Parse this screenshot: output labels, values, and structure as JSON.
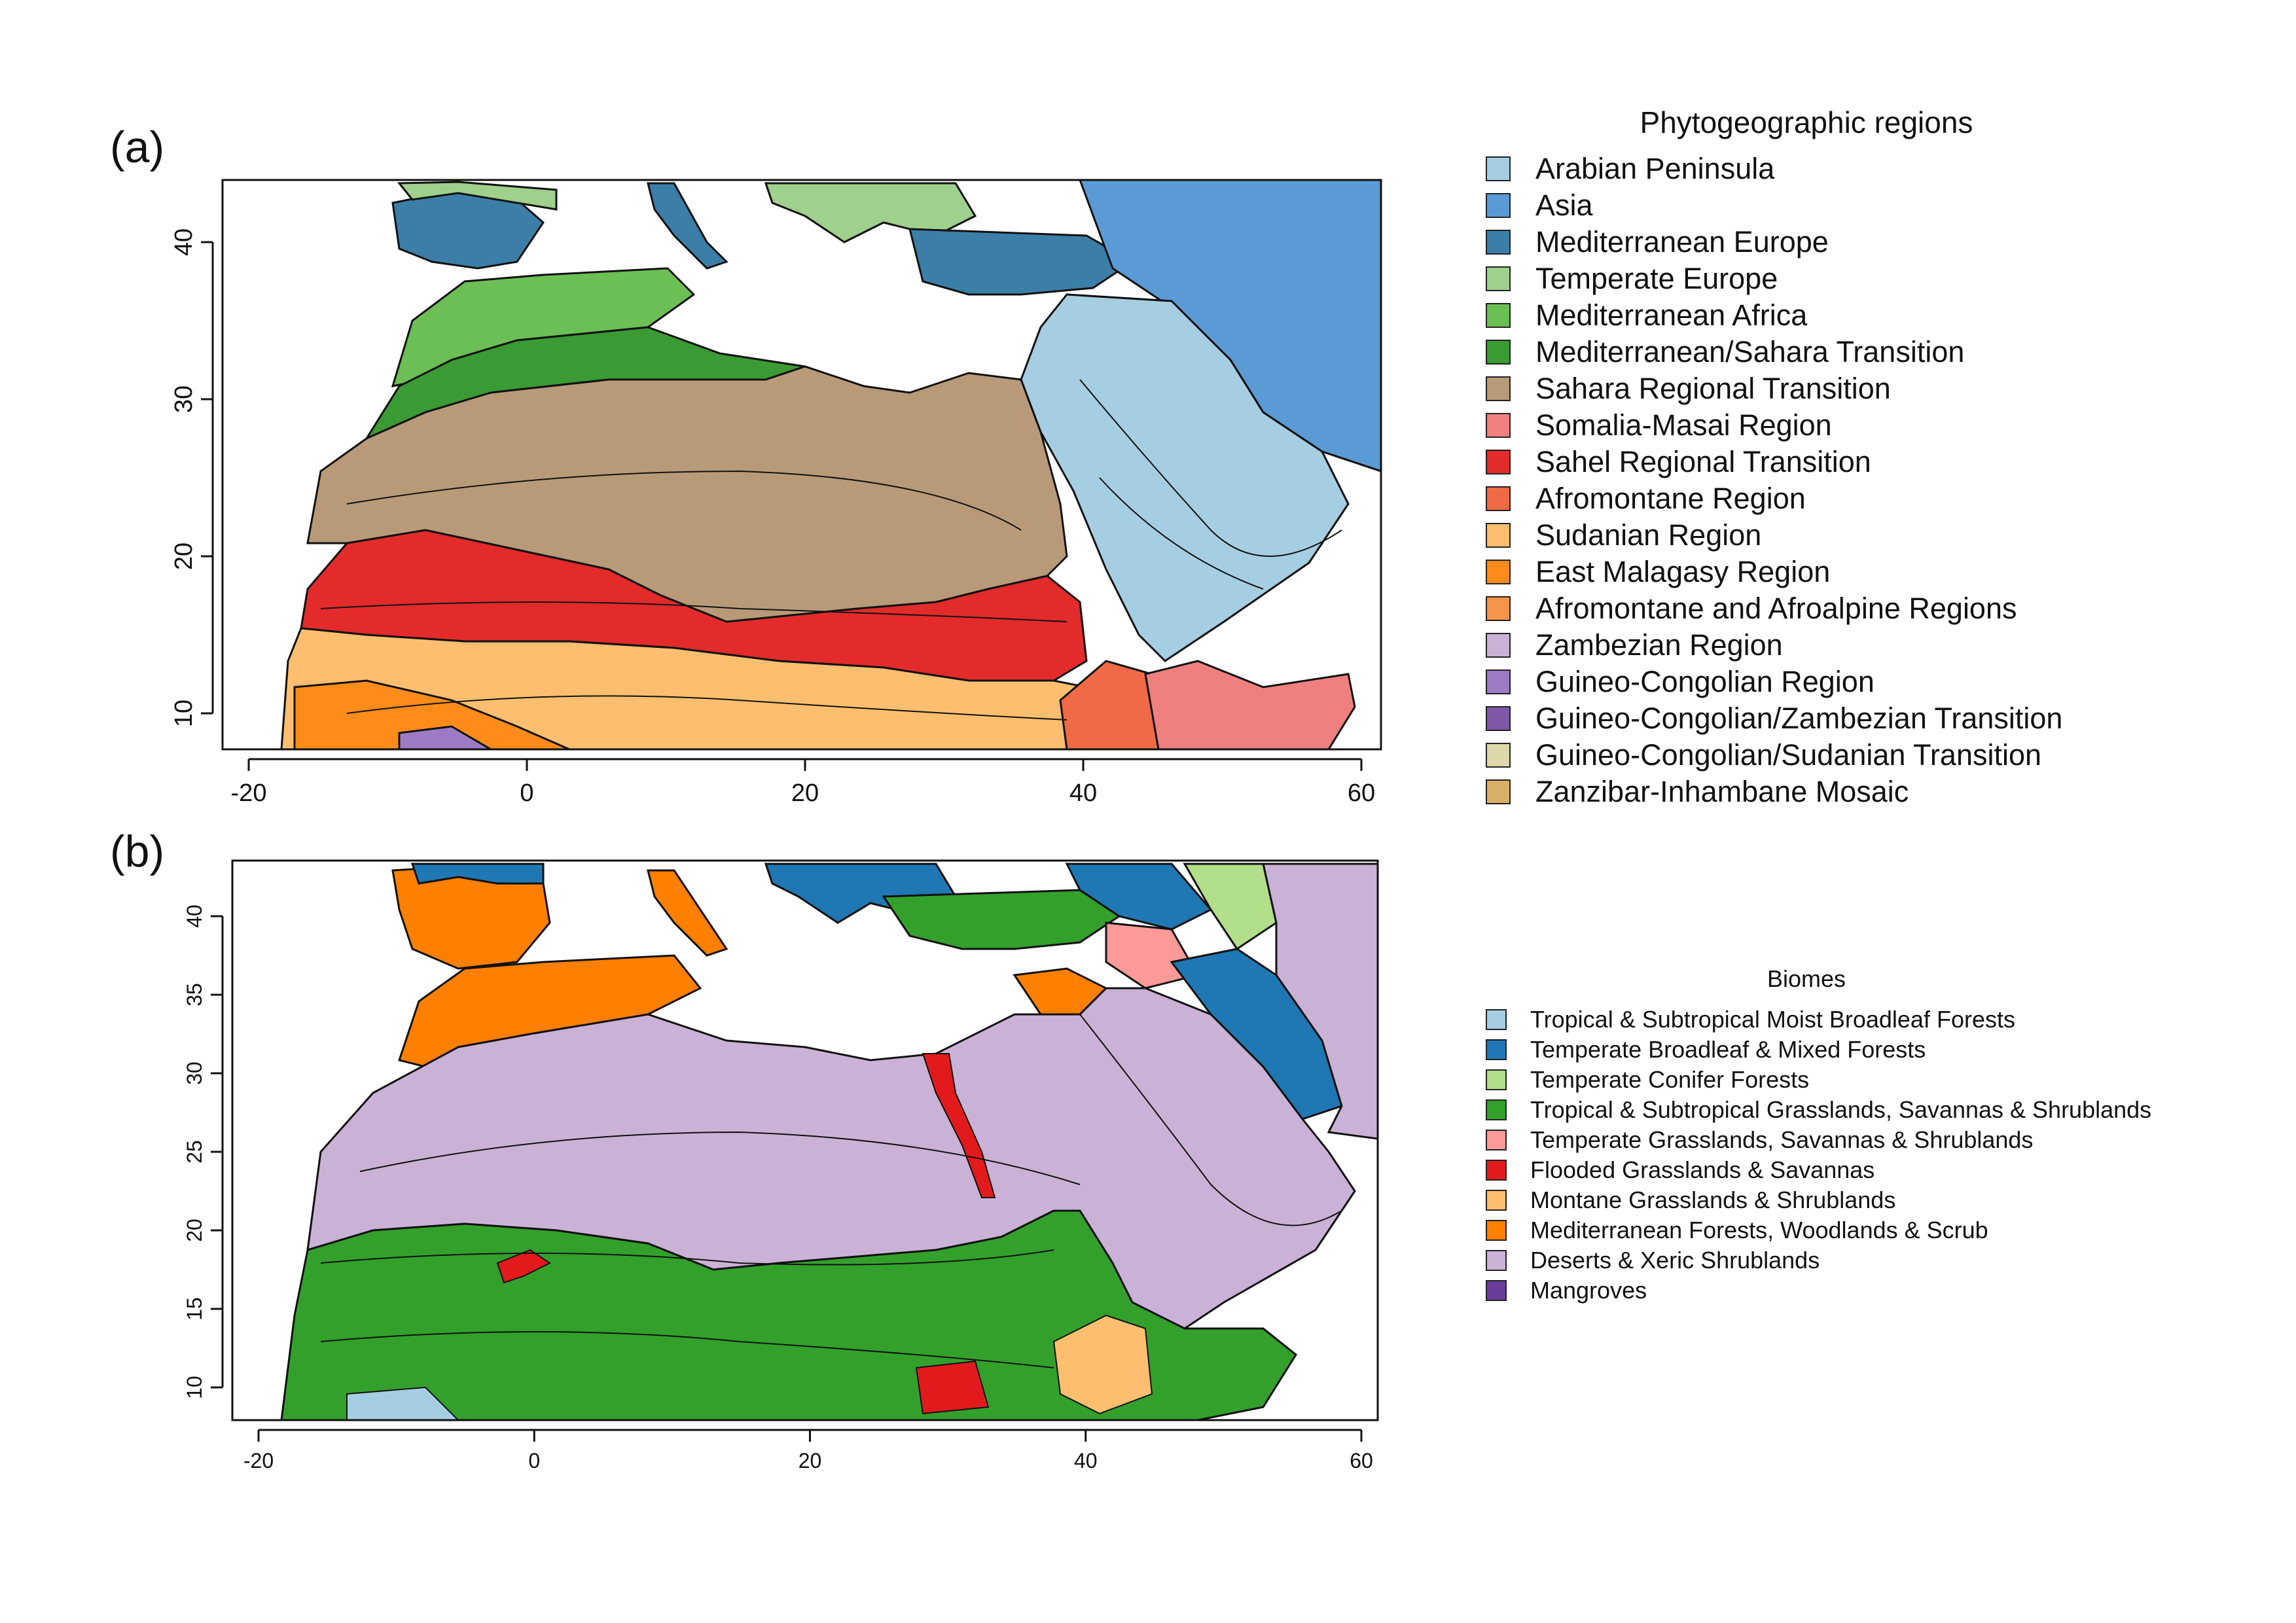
{
  "panel_a": {
    "label": "(a)",
    "x_ticks": [
      "-20",
      "0",
      "20",
      "40",
      "60"
    ],
    "y_ticks": [
      "10",
      "20",
      "30",
      "40"
    ],
    "legend": {
      "title": "Phytogeographic regions",
      "items": [
        {
          "label": "Arabian Peninsula",
          "color": "#a6cee3"
        },
        {
          "label": "Asia",
          "color": "#5b9bd5"
        },
        {
          "label": "Mediterranean Europe",
          "color": "#3b7fa8"
        },
        {
          "label": "Temperate Europe",
          "color": "#9fd08c"
        },
        {
          "label": "Mediterranean Africa",
          "color": "#6cbf55"
        },
        {
          "label": "Mediterranean/Sahara Transition",
          "color": "#3a9a33"
        },
        {
          "label": "Sahara Regional Transition",
          "color": "#b99a78"
        },
        {
          "label": "Somalia-Masai Region",
          "color": "#f08080"
        },
        {
          "label": "Sahel Regional Transition",
          "color": "#e32b2b"
        },
        {
          "label": "Afromontane Region",
          "color": "#f06a45"
        },
        {
          "label": "Sudanian Region",
          "color": "#fdbf6f"
        },
        {
          "label": "East Malagasy Region",
          "color": "#ff8c1a"
        },
        {
          "label": "Afromontane and Afroalpine Regions",
          "color": "#f5954a"
        },
        {
          "label": "Zambezian Region",
          "color": "#cab2d6"
        },
        {
          "label": "Guineo-Congolian Region",
          "color": "#9c7bc4"
        },
        {
          "label": "Guineo-Congolian/Zambezian Transition",
          "color": "#7f58a8"
        },
        {
          "label": "Guineo-Congolian/Sudanian Transition",
          "color": "#ded8a8"
        },
        {
          "label": "Zanzibar-Inhambane Mosaic",
          "color": "#d8b068"
        }
      ]
    }
  },
  "panel_b": {
    "label": "(b)",
    "x_ticks": [
      "-20",
      "0",
      "20",
      "40",
      "60"
    ],
    "y_ticks": [
      "10",
      "15",
      "20",
      "25",
      "30",
      "35",
      "40"
    ],
    "legend": {
      "title": "Biomes",
      "items": [
        {
          "label": "Tropical & Subtropical Moist Broadleaf Forests",
          "color": "#a6cee3"
        },
        {
          "label": "Temperate Broadleaf & Mixed Forests",
          "color": "#1f78b4"
        },
        {
          "label": "Temperate Conifer Forests",
          "color": "#b2df8a"
        },
        {
          "label": "Tropical & Subtropical Grasslands, Savannas & Shrublands",
          "color": "#33a02c"
        },
        {
          "label": "Temperate Grasslands, Savannas & Shrublands",
          "color": "#fb9a99"
        },
        {
          "label": "Flooded Grasslands & Savannas",
          "color": "#e31a1c"
        },
        {
          "label": "Montane Grasslands & Shrublands",
          "color": "#fdbf6f"
        },
        {
          "label": "Mediterranean Forests, Woodlands & Scrub",
          "color": "#ff7f00"
        },
        {
          "label": "Deserts & Xeric Shrublands",
          "color": "#cab2d6"
        },
        {
          "label": "Mangroves",
          "color": "#6a3d9a"
        }
      ]
    }
  }
}
